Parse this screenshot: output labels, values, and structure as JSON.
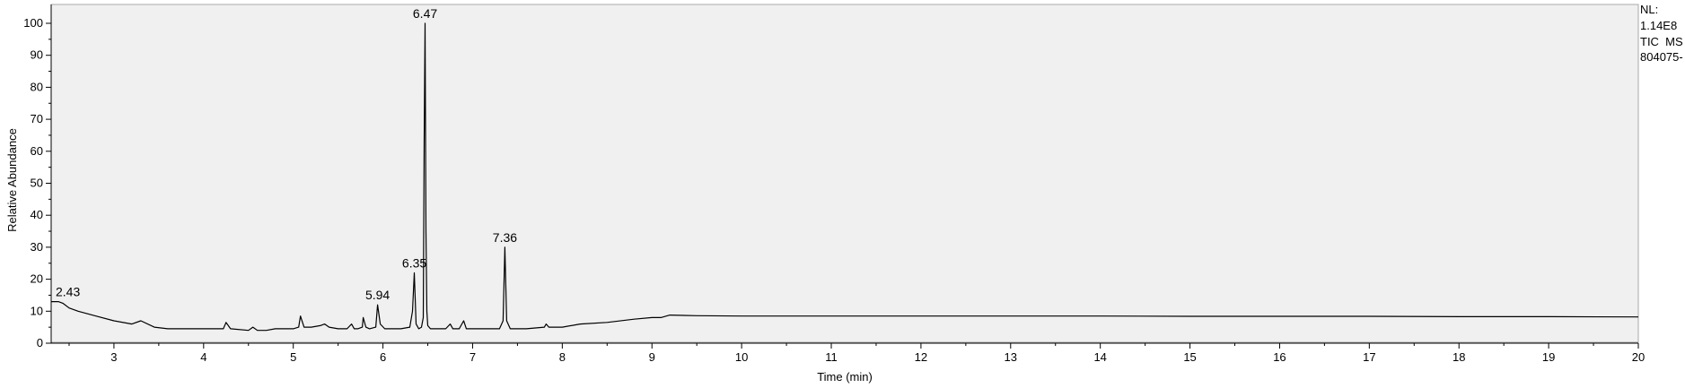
{
  "chart_data": {
    "type": "line",
    "title": "",
    "xlabel": "Time (min)",
    "ylabel": "Relative Abundance",
    "xlim": [
      2.3,
      20
    ],
    "ylim": [
      0,
      100
    ],
    "x_ticks": [
      3,
      4,
      5,
      6,
      7,
      8,
      9,
      10,
      11,
      12,
      13,
      14,
      15,
      16,
      17,
      18,
      19,
      20
    ],
    "y_ticks": [
      0,
      10,
      20,
      30,
      40,
      50,
      60,
      70,
      80,
      90,
      100
    ],
    "grid": false,
    "info_lines": [
      "NL:",
      "1.14E8",
      "TIC  MS",
      "804075-"
    ],
    "peak_labels": [
      {
        "time": 2.43,
        "label": "2.43",
        "y": 13
      },
      {
        "time": 5.94,
        "label": "5.94",
        "y": 12
      },
      {
        "time": 6.35,
        "label": "6.35",
        "y": 22
      },
      {
        "time": 6.47,
        "label": "6.47",
        "y": 100
      },
      {
        "time": 7.36,
        "label": "7.36",
        "y": 30
      }
    ],
    "series": [
      {
        "x": [
          2.3,
          2.38,
          2.43,
          2.5,
          2.6,
          2.8,
          3.0,
          3.2,
          3.3,
          3.45,
          3.6,
          3.75,
          3.9,
          4.1,
          4.22,
          4.25,
          4.3,
          4.5,
          4.55,
          4.6,
          4.7,
          4.8,
          4.9,
          5.0,
          5.06,
          5.08,
          5.12,
          5.2,
          5.3,
          5.35,
          5.4,
          5.5,
          5.6,
          5.65,
          5.68,
          5.72,
          5.77,
          5.78,
          5.81,
          5.85,
          5.92,
          5.94,
          5.97,
          6.02,
          6.1,
          6.2,
          6.3,
          6.33,
          6.35,
          6.37,
          6.4,
          6.43,
          6.45,
          6.46,
          6.47,
          6.48,
          6.49,
          6.5,
          6.53,
          6.6,
          6.7,
          6.75,
          6.78,
          6.85,
          6.9,
          6.93,
          7.0,
          7.1,
          7.2,
          7.3,
          7.34,
          7.36,
          7.38,
          7.42,
          7.5,
          7.6,
          7.8,
          7.82,
          7.85,
          8.0,
          8.2,
          8.5,
          8.8,
          9.0,
          9.1,
          9.2,
          9.5,
          10.0,
          11.0,
          12.0,
          13.0,
          14.0,
          15.0,
          16.0,
          17.0,
          18.0,
          19.0,
          20.0
        ],
        "y": [
          13.0,
          13.0,
          12.5,
          11.0,
          10.0,
          8.5,
          7.0,
          6.0,
          7.0,
          5.0,
          4.5,
          4.5,
          4.5,
          4.5,
          4.5,
          6.5,
          4.5,
          4.0,
          5.0,
          4.0,
          4.0,
          4.5,
          4.5,
          4.5,
          5.0,
          8.5,
          5.0,
          5.0,
          5.5,
          6.0,
          5.0,
          4.5,
          4.5,
          6.0,
          4.5,
          4.5,
          5.0,
          8.0,
          5.0,
          4.5,
          5.0,
          12.0,
          6.0,
          4.5,
          4.5,
          4.5,
          5.0,
          10.0,
          22.0,
          6.0,
          4.5,
          5.0,
          8.0,
          63.0,
          100.0,
          35.0,
          10.0,
          5.5,
          4.5,
          4.5,
          4.5,
          6.0,
          4.5,
          4.5,
          7.0,
          4.5,
          4.5,
          4.5,
          4.5,
          4.5,
          7.0,
          30.0,
          7.0,
          4.5,
          4.5,
          4.5,
          5.0,
          6.0,
          5.0,
          5.0,
          6.0,
          6.5,
          7.5,
          8.0,
          8.0,
          8.8,
          8.6,
          8.5,
          8.5,
          8.5,
          8.5,
          8.5,
          8.4,
          8.4,
          8.4,
          8.3,
          8.3,
          8.2
        ]
      }
    ]
  }
}
